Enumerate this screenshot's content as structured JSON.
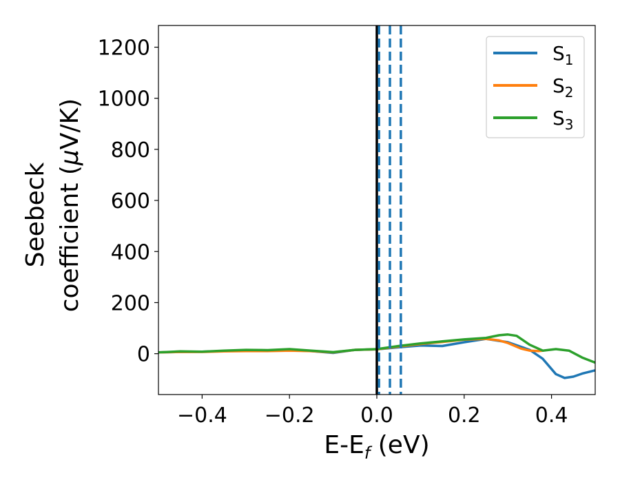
{
  "chart_data": {
    "type": "line",
    "title": "",
    "xlabel": {
      "main": "E-E",
      "sub": "f",
      "unit": " (eV)"
    },
    "ylabel": {
      "line1": "Seebeck",
      "line2": "coefficient  (",
      "mu": "μ",
      "line2_end": "V/K)"
    },
    "xlim": [
      -0.5,
      0.5
    ],
    "ylim": [
      -160,
      1285
    ],
    "x_ticks": [
      -0.4,
      -0.2,
      0.0,
      0.2,
      0.4
    ],
    "x_tick_labels": [
      "−0.4",
      "−0.2",
      "0.0",
      "0.2",
      "0.4"
    ],
    "y_ticks": [
      0,
      200,
      400,
      600,
      800,
      1000,
      1200
    ],
    "y_tick_labels": [
      "0",
      "200",
      "400",
      "600",
      "800",
      "1000",
      "1200"
    ],
    "grid": false,
    "legend_position": "top-right",
    "vertical_lines": [
      {
        "x": 0.0,
        "style": "solid",
        "color": "#000000"
      },
      {
        "x": 0.005,
        "style": "dashed",
        "color": "#1f77b4"
      },
      {
        "x": 0.03,
        "style": "dashed",
        "color": "#1f77b4"
      },
      {
        "x": 0.055,
        "style": "dashed",
        "color": "#1f77b4"
      }
    ],
    "series": [
      {
        "name": "S",
        "sub": "1",
        "color": "#1f77b4",
        "x": [
          -0.5,
          -0.45,
          -0.4,
          -0.35,
          -0.3,
          -0.25,
          -0.2,
          -0.15,
          -0.1,
          -0.05,
          0.0,
          0.05,
          0.1,
          0.15,
          0.2,
          0.25,
          0.3,
          0.35,
          0.38,
          0.41,
          0.43,
          0.45,
          0.47,
          0.5
        ],
        "y": [
          5,
          7,
          8,
          10,
          12,
          12,
          14,
          10,
          3,
          15,
          17,
          25,
          32,
          30,
          45,
          58,
          45,
          15,
          -20,
          -80,
          -95,
          -90,
          -78,
          -65
        ]
      },
      {
        "name": "S",
        "sub": "2",
        "color": "#ff7f0e",
        "x": [
          -0.5,
          -0.45,
          -0.4,
          -0.35,
          -0.3,
          -0.25,
          -0.2,
          -0.15,
          -0.1,
          -0.05,
          0.0,
          0.05,
          0.1,
          0.15,
          0.2,
          0.25,
          0.28,
          0.3,
          0.33,
          0.35,
          0.37,
          0.38
        ],
        "y": [
          5,
          7,
          7,
          9,
          10,
          10,
          12,
          10,
          5,
          15,
          17,
          28,
          38,
          46,
          55,
          58,
          52,
          42,
          20,
          12,
          10,
          12
        ]
      },
      {
        "name": "S",
        "sub": "3",
        "color": "#2ca02c",
        "x": [
          -0.5,
          -0.45,
          -0.4,
          -0.35,
          -0.3,
          -0.25,
          -0.2,
          -0.15,
          -0.1,
          -0.05,
          0.0,
          0.05,
          0.1,
          0.15,
          0.2,
          0.25,
          0.28,
          0.3,
          0.32,
          0.35,
          0.38,
          0.41,
          0.44,
          0.47,
          0.5
        ],
        "y": [
          5,
          9,
          8,
          12,
          15,
          14,
          18,
          12,
          6,
          15,
          18,
          30,
          40,
          48,
          56,
          62,
          72,
          75,
          70,
          35,
          12,
          18,
          12,
          -15,
          -35
        ]
      }
    ]
  }
}
